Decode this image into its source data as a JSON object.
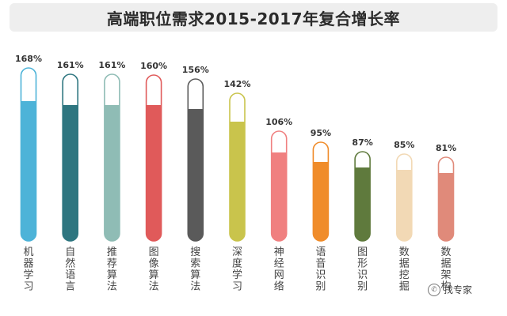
{
  "chart_data": {
    "type": "bar",
    "title": "高端职位需求2015-2017年复合增长率",
    "categories": [
      "机器学习",
      "自然语言",
      "推荐算法",
      "图像算法",
      "搜索算法",
      "深度学习",
      "神经网络",
      "语音识别",
      "图形识别",
      "数据挖掘",
      "数据架构"
    ],
    "values": [
      168,
      161,
      161,
      160,
      156,
      142,
      106,
      95,
      87,
      85,
      81
    ],
    "value_labels": [
      "168%",
      "161%",
      "161%",
      "160%",
      "156%",
      "142%",
      "106%",
      "95%",
      "87%",
      "85%",
      "81%"
    ],
    "colors": [
      "#4db3d8",
      "#2e7680",
      "#8fbcb5",
      "#e05a5a",
      "#5a5a5a",
      "#c9c44c",
      "#f08080",
      "#f08c2a",
      "#5f7a3d",
      "#f2d9b5",
      "#e08a7a"
    ],
    "xlabel": "",
    "ylabel": "",
    "ylim": [
      0,
      200
    ],
    "grid": false,
    "legend": "none"
  },
  "watermark": {
    "text": "找专家",
    "icon": "wechat-icon"
  }
}
